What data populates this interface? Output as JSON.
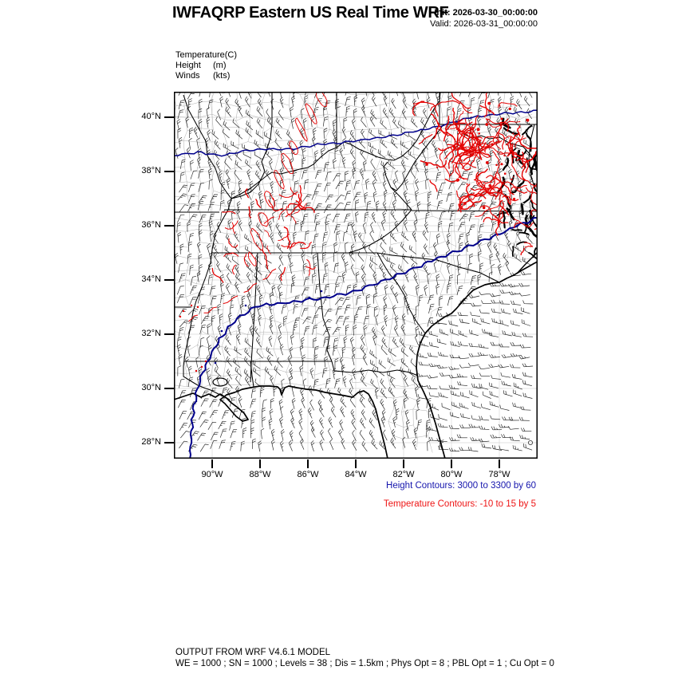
{
  "header": {
    "title": "IWFAQRP Eastern US Real Time WRF",
    "init_label": "Init: 2026-03-30_00:00:00",
    "valid_label": "Valid: 2026-03-31_00:00:00"
  },
  "legend": {
    "fields": [
      {
        "label": "Temperature",
        "unit": "(C)"
      },
      {
        "label": "Height",
        "unit": "(m)"
      },
      {
        "label": "Winds",
        "unit": "(kts)"
      }
    ]
  },
  "map": {
    "y_ticks": [
      "40°N",
      "38°N",
      "36°N",
      "34°N",
      "32°N",
      "30°N",
      "28°N"
    ],
    "x_ticks": [
      "90°W",
      "88°W",
      "86°W",
      "84°W",
      "82°W",
      "80°W",
      "78°W"
    ],
    "contour_notes": [
      {
        "text": "Height Contours: 3000 to 3300 by 60",
        "color": "#1515AD"
      },
      {
        "text": "Temperature Contours: -10 to 15 by 5",
        "color": "#EE1515"
      }
    ]
  },
  "footer": {
    "line1": "OUTPUT FROM WRF V4.6.1 MODEL",
    "line2": "WE = 1000 ; SN = 1000 ; Levels = 38 ; Dis = 1.5km ; Phys Opt = 8 ; PBL Opt = 1 ; Cu Opt = 0"
  },
  "colors": {
    "height_contour": "#00008B",
    "temp_contour": "#E40000",
    "barb": "#1f1f1f",
    "state_border": "#000000",
    "county_line": "#9a9a9a",
    "graticule": "#d9d9d9"
  }
}
